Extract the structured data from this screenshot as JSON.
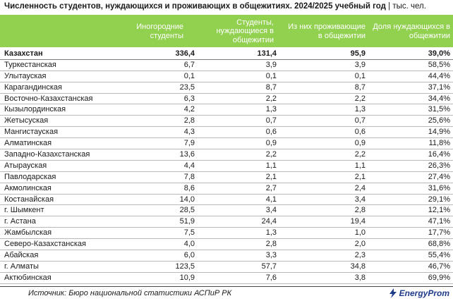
{
  "title": "Численность студентов, нуждающихся и проживающих в общежитиях. 2024/2025 учебный год",
  "unit": " | тыс. чел.",
  "columns": [
    "Иногородние студенты",
    "Студенты, нуждающиеся в общежитии",
    "Из них проживающие в общежитии",
    "Доля нуждающихся в общежитии"
  ],
  "rows": [
    [
      "Казахстан",
      "336,4",
      "131,4",
      "95,9",
      "39,0%"
    ],
    [
      "Туркестанская",
      "6,7",
      "3,9",
      "3,9",
      "58,5%"
    ],
    [
      "Улытауская",
      "0,1",
      "0,1",
      "0,1",
      "44,4%"
    ],
    [
      "Карагандинская",
      "23,5",
      "8,7",
      "8,7",
      "37,1%"
    ],
    [
      "Восточно-Казахстанская",
      "6,3",
      "2,2",
      "2,2",
      "34,4%"
    ],
    [
      "Кызылординская",
      "4,2",
      "1,3",
      "1,3",
      "31,5%"
    ],
    [
      "Жетысуская",
      "2,8",
      "0,7",
      "0,7",
      "25,6%"
    ],
    [
      "Мангистауская",
      "4,3",
      "0,6",
      "0,6",
      "14,9%"
    ],
    [
      "Алматинская",
      "7,9",
      "0,9",
      "0,9",
      "11,8%"
    ],
    [
      "Западно-Казахстанская",
      "13,6",
      "2,2",
      "2,2",
      "16,4%"
    ],
    [
      "Атырауская",
      "4,4",
      "1,1",
      "1,1",
      "26,3%"
    ],
    [
      "Павлодарская",
      "7,8",
      "2,1",
      "2,1",
      "27,4%"
    ],
    [
      "Акмолинская",
      "8,6",
      "2,7",
      "2,4",
      "31,6%"
    ],
    [
      "Костанайская",
      "14,0",
      "4,1",
      "3,4",
      "29,1%"
    ],
    [
      "г. Шымкент",
      "28,5",
      "3,4",
      "2,8",
      "12,1%"
    ],
    [
      "г. Астана",
      "51,9",
      "24,4",
      "19,4",
      "47,1%"
    ],
    [
      "Жамбылская",
      "7,5",
      "1,3",
      "1,0",
      "17,7%"
    ],
    [
      "Северо-Казахстанская",
      "4,0",
      "2,8",
      "2,0",
      "68,8%"
    ],
    [
      "Абайская",
      "6,0",
      "3,3",
      "2,3",
      "55,4%"
    ],
    [
      "г. Алматы",
      "123,5",
      "57,7",
      "34,8",
      "46,7%"
    ],
    [
      "Актюбинская",
      "10,9",
      "7,6",
      "3,8",
      "69,9%"
    ]
  ],
  "source": "Источник: Бюро национальной статистики АСПиР РК",
  "logo": "EnergyProm",
  "colors": {
    "header_bg": "#92d050",
    "logo": "#1e3a8a"
  }
}
